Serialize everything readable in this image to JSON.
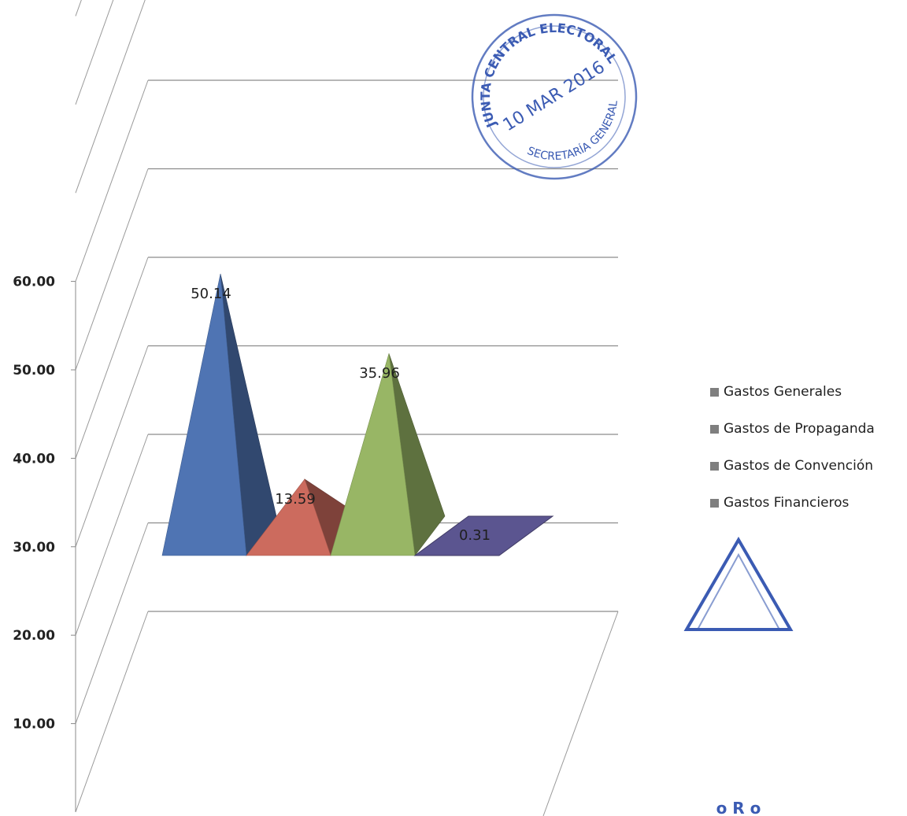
{
  "chart_data": {
    "type": "bar",
    "style": "3d-pyramid",
    "categories": [
      "Gastos Generales",
      "Gastos de Propaganda",
      "Gastos de Convención",
      "Gastos Financieros"
    ],
    "values": [
      50.14,
      13.59,
      35.96,
      0.31
    ],
    "data_labels": [
      "50.14",
      "13.59",
      "35.96",
      "0.31"
    ],
    "yticks": [
      "10.00",
      "20.00",
      "30.00",
      "40.00",
      "50.00",
      "60.00"
    ],
    "ylim": [
      0,
      60
    ],
    "grid": true,
    "legend_position": "right",
    "series_colors": [
      "#4f74b3",
      "#cc6b5e",
      "#98b665",
      "#5b5590"
    ]
  },
  "legend": {
    "items": [
      "Gastos Generales",
      "Gastos de Propaganda",
      "Gastos de Convención",
      "Gastos Financieros"
    ],
    "swatch_color": "#7f7f7f"
  },
  "stamps": {
    "round_stamp_lines": [
      "JUNTA CENTRAL ELECTORAL",
      "10 MAR 2016",
      "SECRETARÍA GENERAL"
    ],
    "triangle_stamp_text": "o R o",
    "ink_color": "#3b5bb3"
  }
}
